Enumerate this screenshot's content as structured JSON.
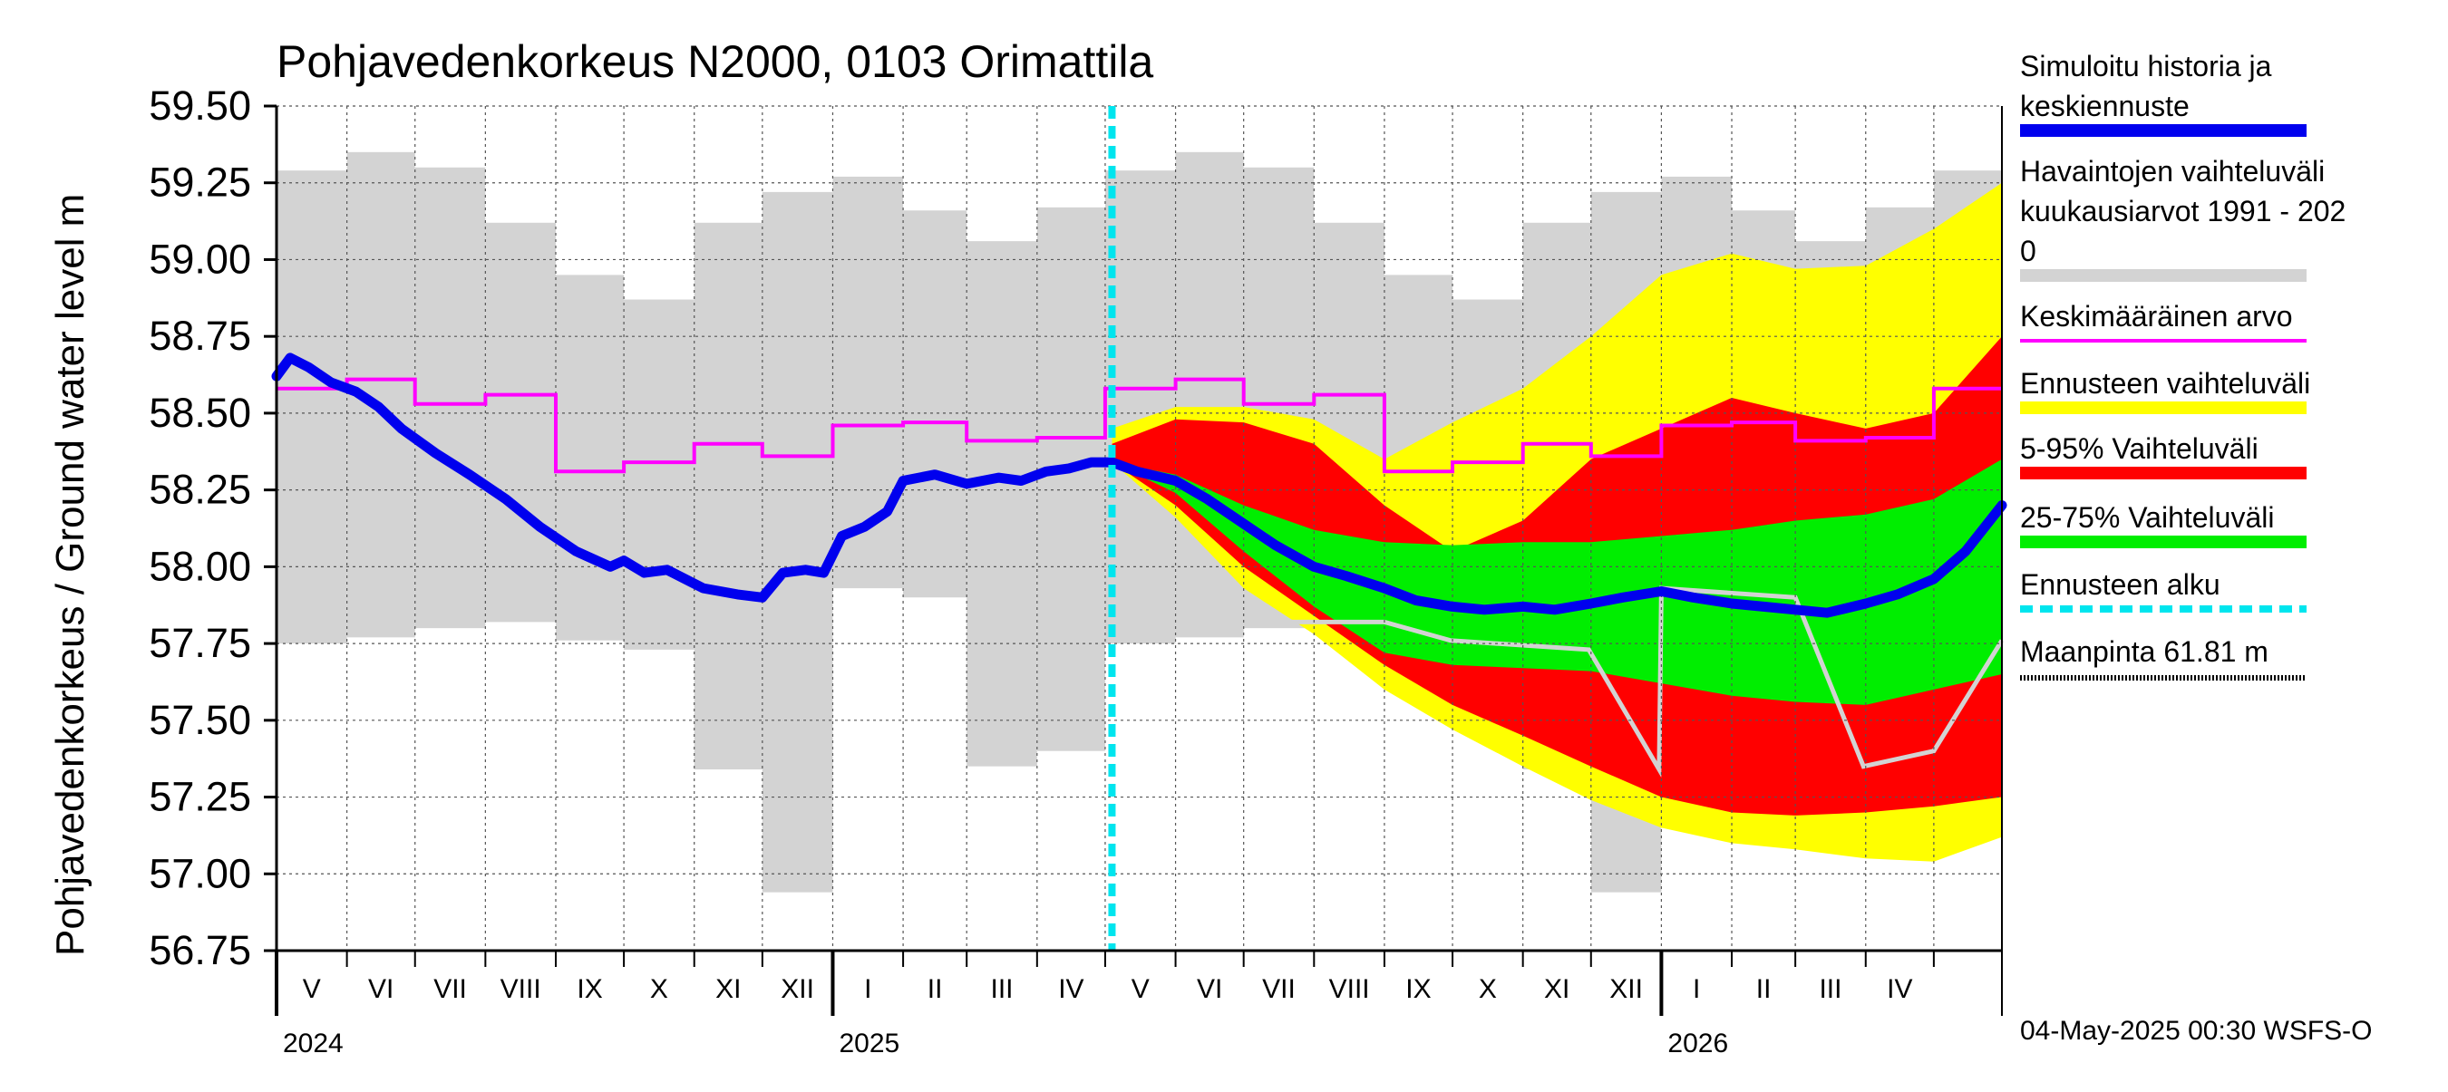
{
  "chart_data": {
    "type": "area",
    "title": "Pohjavedenkorkeus N2000, 0103 Orimattila",
    "ylabel": "Pohjavedenkorkeus / Ground water level   m",
    "ylim": [
      56.75,
      59.5
    ],
    "yticks": [
      56.75,
      57.0,
      57.25,
      57.5,
      57.75,
      58.0,
      58.25,
      58.5,
      58.75,
      59.0,
      59.25,
      59.5
    ],
    "ytick_labels": [
      "56.75",
      "57.00",
      "57.25",
      "57.50",
      "57.75",
      "58.00",
      "58.25",
      "58.50",
      "58.75",
      "59.00",
      "59.25",
      "59.50"
    ],
    "grid": true,
    "x_start": "2024-05-01",
    "x_end": "2026-05-31",
    "months": [
      "V",
      "VI",
      "VII",
      "VIII",
      "IX",
      "X",
      "XI",
      "XII",
      "I",
      "II",
      "III",
      "IV",
      "V",
      "VI",
      "VII",
      "VIII",
      "IX",
      "X",
      "XI",
      "XII",
      "I",
      "II",
      "III",
      "IV"
    ],
    "years": [
      {
        "label": "2024",
        "date": "2024-05-01"
      },
      {
        "label": "2025",
        "date": "2025-01-01"
      },
      {
        "label": "2026",
        "date": "2026-01-01"
      }
    ],
    "forecast_start": "2025-05-04",
    "footer": "04-May-2025 00:30 WSFS-O",
    "legend": [
      {
        "label": "Simuloitu historia ja keskiennuste",
        "label_lines": [
          "Simuloitu historia ja",
          "keskiennuste"
        ],
        "color": "#0000ee",
        "style": "thick"
      },
      {
        "label": "Havaintojen vaihteluväli kuukausiarvot 1991 - 2020",
        "label_lines": [
          "Havaintojen vaihteluväli",
          " kuukausiarvot 1991 - 202",
          "0"
        ],
        "color": "#d3d3d3",
        "style": "thick"
      },
      {
        "label": "Keskimääräinen arvo",
        "label_lines": [
          "Keskimääräinen arvo"
        ],
        "color": "#ff00ff",
        "style": "thin"
      },
      {
        "label": "Ennusteen vaihteluväli",
        "label_lines": [
          "Ennusteen vaihteluväli"
        ],
        "color": "#ffff00",
        "style": "thick"
      },
      {
        "label": "5-95% Vaihteluväli",
        "label_lines": [
          "5-95% Vaihteluväli"
        ],
        "color": "#ff0000",
        "style": "thick"
      },
      {
        "label": "25-75% Vaihteluväli",
        "label_lines": [
          "25-75% Vaihteluväli"
        ],
        "color": "#00ee00",
        "style": "thick"
      },
      {
        "label": "Ennusteen alku",
        "label_lines": [
          "Ennusteen alku"
        ],
        "color": "#00e5ee",
        "style": "dashed"
      },
      {
        "label": "Maanpinta 61.81 m",
        "label_lines": [
          "Maanpinta 61.81 m"
        ],
        "color": "#000000",
        "style": "dotted"
      }
    ],
    "observed_range_monthly": {
      "months": [
        "V",
        "VI",
        "VII",
        "VIII",
        "IX",
        "X",
        "XI",
        "XII",
        "I",
        "II",
        "III",
        "IV"
      ],
      "max": [
        59.29,
        59.35,
        59.3,
        59.12,
        58.95,
        58.87,
        59.12,
        59.22,
        59.27,
        59.16,
        59.06,
        59.17
      ],
      "min": [
        57.75,
        57.77,
        57.8,
        57.82,
        57.76,
        57.73,
        57.34,
        56.94,
        57.93,
        57.9,
        57.35,
        57.4
      ]
    },
    "mean_monthly": {
      "months": [
        "V",
        "VI",
        "VII",
        "VIII",
        "IX",
        "X",
        "XI",
        "XII",
        "I",
        "II",
        "III",
        "IV"
      ],
      "values": [
        58.58,
        58.61,
        58.53,
        58.56,
        58.31,
        58.34,
        58.4,
        58.36,
        58.46,
        58.47,
        58.41,
        58.42
      ]
    },
    "simulated_history": {
      "x": [
        "2024-05-01",
        "2024-05-07",
        "2024-05-15",
        "2024-05-25",
        "2024-06-05",
        "2024-06-15",
        "2024-06-25",
        "2024-07-10",
        "2024-07-25",
        "2024-08-10",
        "2024-08-25",
        "2024-09-10",
        "2024-09-25",
        "2024-10-01",
        "2024-10-10",
        "2024-10-20",
        "2024-11-05",
        "2024-11-20",
        "2024-12-01",
        "2024-12-10",
        "2024-12-20",
        "2024-12-28",
        "2025-01-05",
        "2025-01-15",
        "2025-01-25",
        "2025-02-01",
        "2025-02-15",
        "2025-03-01",
        "2025-03-15",
        "2025-03-25",
        "2025-04-05",
        "2025-04-15",
        "2025-04-25",
        "2025-05-04"
      ],
      "y": [
        58.62,
        58.68,
        58.65,
        58.6,
        58.57,
        58.52,
        58.45,
        58.37,
        58.3,
        58.22,
        58.13,
        58.05,
        58.0,
        58.02,
        57.98,
        57.99,
        57.93,
        57.91,
        57.9,
        57.98,
        57.99,
        57.98,
        58.1,
        58.13,
        58.18,
        58.28,
        58.3,
        58.27,
        58.29,
        58.28,
        58.31,
        58.32,
        58.34,
        58.34
      ]
    },
    "forecast_median": {
      "x": [
        "2025-05-04",
        "2025-05-15",
        "2025-06-01",
        "2025-06-15",
        "2025-07-01",
        "2025-07-15",
        "2025-08-01",
        "2025-08-15",
        "2025-09-01",
        "2025-09-15",
        "2025-10-01",
        "2025-10-15",
        "2025-11-01",
        "2025-11-15",
        "2025-12-01",
        "2025-12-15",
        "2026-01-01",
        "2026-01-15",
        "2026-02-01",
        "2026-02-15",
        "2026-03-01",
        "2026-03-15",
        "2026-04-01",
        "2026-04-15",
        "2026-05-01",
        "2026-05-15",
        "2026-05-31"
      ],
      "y": [
        58.34,
        58.31,
        58.28,
        58.22,
        58.14,
        58.07,
        58.0,
        57.97,
        57.93,
        57.89,
        57.87,
        57.86,
        57.87,
        57.86,
        57.88,
        57.9,
        57.92,
        57.9,
        57.88,
        57.87,
        57.86,
        57.85,
        57.88,
        57.91,
        57.96,
        58.05,
        58.2
      ]
    },
    "forecast_bands": {
      "x": [
        "2025-05-04",
        "2025-06-01",
        "2025-07-01",
        "2025-08-01",
        "2025-09-01",
        "2025-10-01",
        "2025-11-01",
        "2025-12-01",
        "2026-01-01",
        "2026-02-01",
        "2026-03-01",
        "2026-04-01",
        "2026-05-01",
        "2026-05-31"
      ],
      "p25": [
        58.34,
        58.24,
        58.05,
        57.87,
        57.72,
        57.68,
        57.67,
        57.66,
        57.62,
        57.58,
        57.56,
        57.55,
        57.6,
        57.65
      ],
      "p75": [
        58.34,
        58.3,
        58.2,
        58.12,
        58.08,
        58.07,
        58.08,
        58.08,
        58.1,
        58.12,
        58.15,
        58.17,
        58.22,
        58.35
      ],
      "p5": [
        58.34,
        58.2,
        58.0,
        57.84,
        57.68,
        57.55,
        57.45,
        57.35,
        57.25,
        57.2,
        57.19,
        57.2,
        57.22,
        57.25
      ],
      "p95": [
        58.4,
        58.48,
        58.47,
        58.4,
        58.2,
        58.05,
        58.15,
        58.35,
        58.45,
        58.55,
        58.5,
        58.45,
        58.5,
        58.75
      ],
      "min": [
        58.34,
        58.16,
        57.93,
        57.78,
        57.6,
        57.47,
        57.35,
        57.24,
        57.15,
        57.1,
        57.08,
        57.05,
        57.04,
        57.12
      ],
      "max": [
        58.45,
        58.52,
        58.52,
        58.48,
        58.35,
        58.47,
        58.58,
        58.75,
        58.95,
        59.02,
        58.97,
        58.98,
        59.1,
        59.25
      ]
    },
    "forecast_observed_range_tail": {
      "x": [
        "2025-05-04",
        "2025-09-01",
        "2025-09-30",
        "2025-11-30",
        "2025-12-31",
        "2026-01-01",
        "2026-03-01",
        "2026-03-31",
        "2026-05-01",
        "2026-05-31"
      ],
      "y": [
        57.82,
        57.82,
        57.76,
        57.73,
        57.34,
        57.93,
        57.9,
        57.35,
        57.4,
        57.76
      ]
    }
  }
}
